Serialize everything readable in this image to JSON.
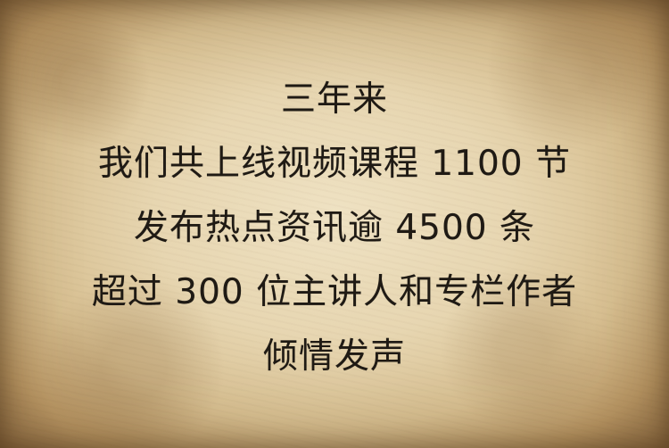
{
  "message": {
    "lines": [
      "三年来",
      "我们共上线视频课程 1100 节",
      "发布热点资讯逾 4500 条",
      "超过 300 位主讲人和专栏作者",
      "倾情发声"
    ]
  },
  "colors": {
    "text": "#1f1a14",
    "paper_light": "#efe2c3",
    "paper_mid": "#d8c092",
    "paper_edge": "#8b6a44"
  }
}
